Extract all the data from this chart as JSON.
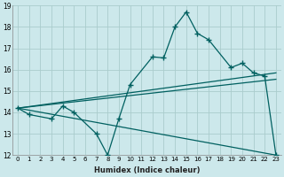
{
  "xlabel": "Humidex (Indice chaleur)",
  "background_color": "#cce8eb",
  "grid_color": "#aacccc",
  "line_color": "#006060",
  "xlim": [
    -0.5,
    23.5
  ],
  "ylim": [
    12,
    19
  ],
  "xticks": [
    0,
    1,
    2,
    3,
    4,
    5,
    6,
    7,
    8,
    9,
    10,
    11,
    12,
    13,
    14,
    15,
    16,
    17,
    18,
    19,
    20,
    21,
    22,
    23
  ],
  "yticks": [
    12,
    13,
    14,
    15,
    16,
    17,
    18,
    19
  ],
  "main_x": [
    0,
    1,
    3,
    4,
    5,
    7,
    8,
    9,
    10,
    12,
    13,
    14,
    15,
    16,
    17,
    19,
    20,
    21,
    22,
    23
  ],
  "main_y": [
    14.2,
    13.9,
    13.7,
    14.3,
    14.0,
    13.0,
    12.0,
    13.7,
    15.3,
    16.6,
    16.55,
    18.0,
    18.7,
    17.7,
    17.4,
    16.1,
    16.3,
    15.85,
    15.7,
    12.0
  ],
  "line1_x": [
    0,
    23
  ],
  "line1_y": [
    14.2,
    15.85
  ],
  "line2_x": [
    0,
    23
  ],
  "line2_y": [
    14.2,
    15.55
  ],
  "line3_x": [
    0,
    23
  ],
  "line3_y": [
    14.2,
    12.0
  ]
}
